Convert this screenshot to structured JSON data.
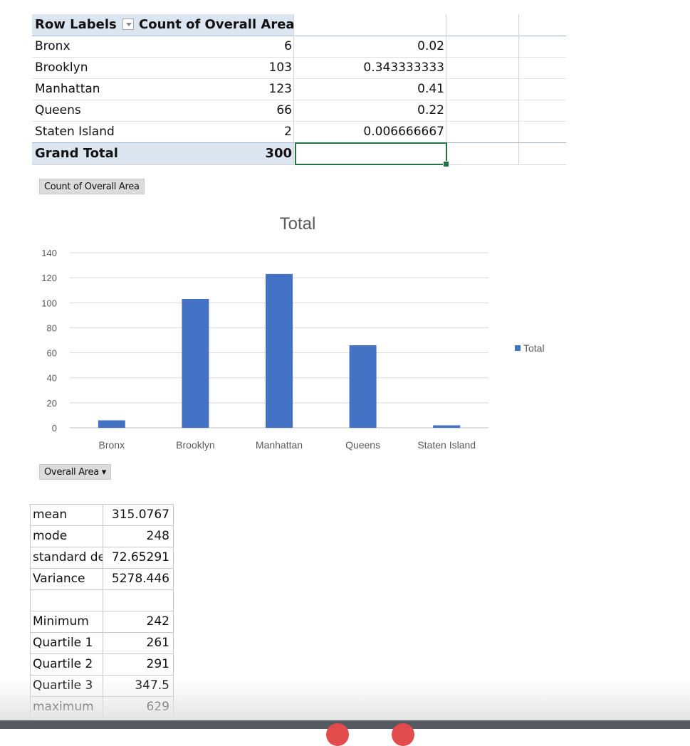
{
  "pivot": {
    "header": {
      "row_labels": "Row Labels",
      "count_col": "Count of Overall Area"
    },
    "rows": [
      {
        "label": "Bronx",
        "count": "6",
        "pct": "0.02"
      },
      {
        "label": "Brooklyn",
        "count": "103",
        "pct": "0.343333333"
      },
      {
        "label": "Manhattan",
        "count": "123",
        "pct": "0.41"
      },
      {
        "label": "Queens",
        "count": "66",
        "pct": "0.22"
      },
      {
        "label": "Staten Island",
        "count": "2",
        "pct": "0.006666667"
      }
    ],
    "total": {
      "label": "Grand Total",
      "count": "300"
    }
  },
  "chart_field_button": "Count of Overall Area",
  "axis_field_button": "Overall Area ▾",
  "colors": {
    "bar": "#4472c4",
    "pivot_header": "#dce6f1",
    "selection": "#217346"
  },
  "chart_data": {
    "type": "bar",
    "title": "Total",
    "categories": [
      "Bronx",
      "Brooklyn",
      "Manhattan",
      "Queens",
      "Staten Island"
    ],
    "series": [
      {
        "name": "Total",
        "values": [
          6,
          103,
          123,
          66,
          2
        ]
      }
    ],
    "ylim": [
      0,
      140
    ],
    "yticks": [
      0,
      20,
      40,
      60,
      80,
      100,
      120,
      140
    ],
    "grid": true,
    "legend": "right"
  },
  "stats": {
    "rows": [
      {
        "label": "mean",
        "value": "315.0767"
      },
      {
        "label": "mode",
        "value": "248"
      },
      {
        "label": "standard deviation",
        "value": "72.65291"
      },
      {
        "label": "Variance",
        "value": "5278.446"
      },
      {
        "label": "",
        "value": ""
      },
      {
        "label": "Minimum",
        "value": "242"
      },
      {
        "label": "Quartile 1",
        "value": "261"
      },
      {
        "label": "Quartile 2",
        "value": "291"
      },
      {
        "label": "Quartile 3",
        "value": "347.5"
      },
      {
        "label": "maximum",
        "value": "629"
      }
    ]
  }
}
